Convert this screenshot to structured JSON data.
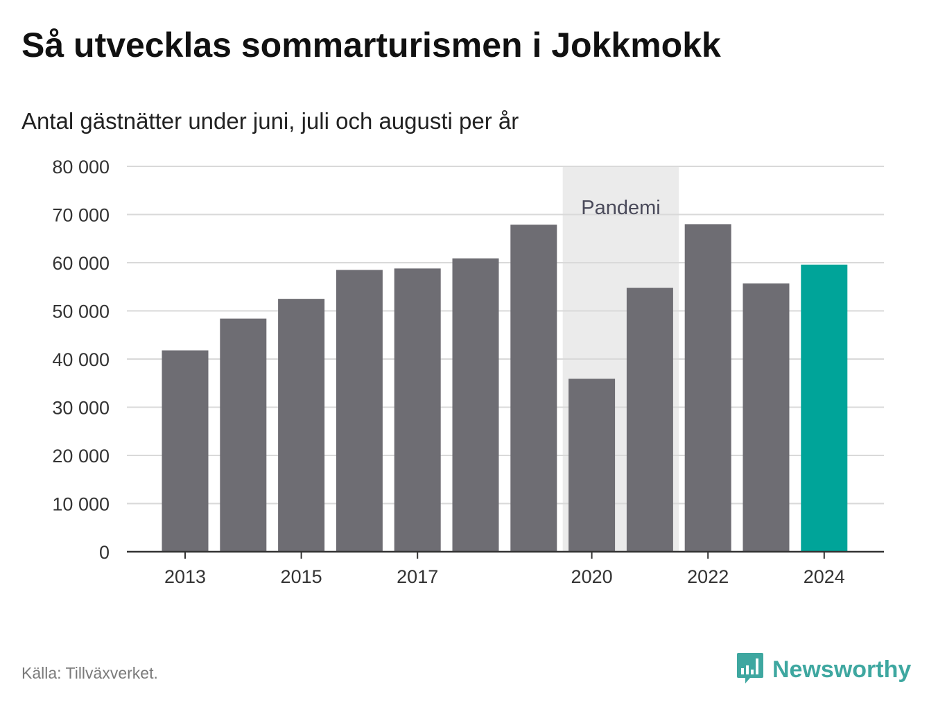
{
  "title": "Så utvecklas sommarturismen i Jokkmokk",
  "subtitle": "Antal gästnätter under juni, juli och augusti per år",
  "source": "Källa: Tillväxverket.",
  "brand": {
    "name": "Newsworthy",
    "logo_icon": "newsworthy-bar-chart-icon",
    "color": "#3ea7a0"
  },
  "colors": {
    "bar": "#6e6d73",
    "highlight": "#00a499",
    "band": "#ebebeb",
    "grid": "#d9d9d9",
    "axis": "#333333",
    "tick_text": "#333333",
    "annotation_text": "#4a4a5a"
  },
  "chart_data": {
    "type": "bar",
    "x": [
      2013,
      2014,
      2015,
      2016,
      2017,
      2018,
      2019,
      2020,
      2021,
      2022,
      2023,
      2024
    ],
    "values": [
      41800,
      48400,
      52500,
      58500,
      58800,
      60900,
      67900,
      35900,
      54800,
      68000,
      55700,
      59600
    ],
    "highlight": [
      2024
    ],
    "ylim": [
      0,
      80000
    ],
    "yticks": [
      0,
      10000,
      20000,
      30000,
      40000,
      50000,
      60000,
      70000,
      80000
    ],
    "ytick_labels": [
      "0",
      "10 000",
      "20 000",
      "30 000",
      "40 000",
      "50 000",
      "60 000",
      "70 000",
      "80 000"
    ],
    "xticks": [
      2013,
      2015,
      2017,
      2020,
      2022,
      2024
    ],
    "xtick_labels": [
      "2013",
      "2015",
      "2017",
      "2020",
      "2022",
      "2024"
    ],
    "grid": true,
    "xlabel": "",
    "ylabel": "",
    "annotation": {
      "label": "Pandemi",
      "x_range": [
        2020,
        2021
      ]
    }
  }
}
